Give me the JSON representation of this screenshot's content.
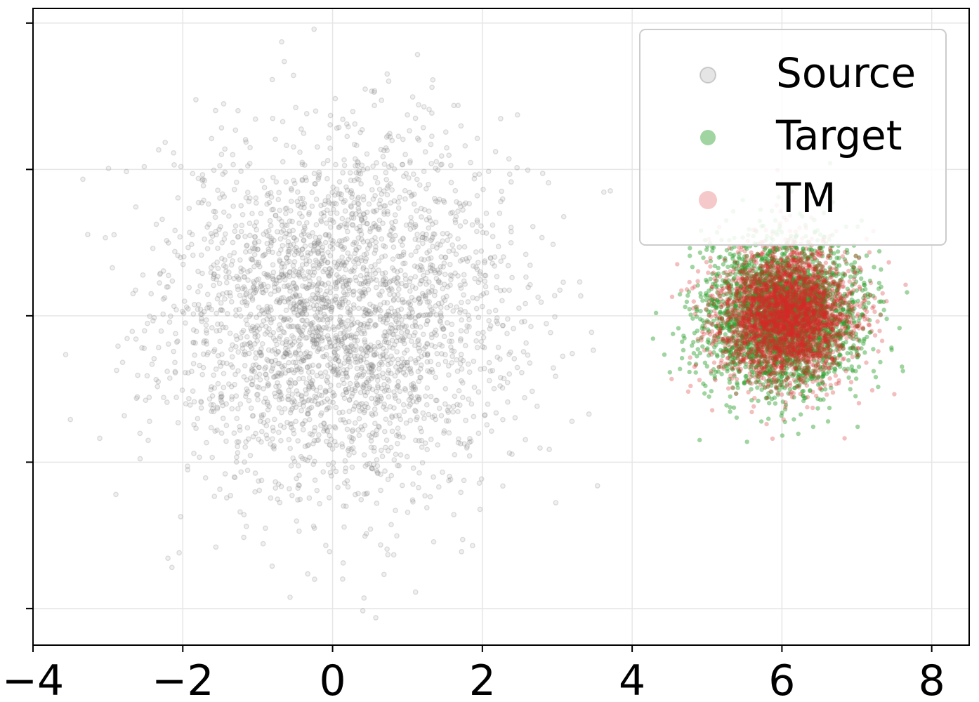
{
  "chart_data": {
    "type": "scatter",
    "title": "",
    "xlabel": "",
    "ylabel": "",
    "xlim": [
      -4.0,
      8.5
    ],
    "ylim": [
      -4.5,
      4.2
    ],
    "xticks": [
      -4,
      -2,
      0,
      2,
      4,
      6,
      8
    ],
    "x_tick_labels": [
      "−4",
      "−2",
      "0",
      "2",
      "4",
      "6",
      "8"
    ],
    "yticks": [
      -4,
      -2,
      0,
      2,
      4
    ],
    "y_tick_labels_shown": false,
    "grid": true,
    "legend_position": "top-right",
    "series": [
      {
        "name": "Source",
        "color": "#7f7f7f",
        "marker": "hollow-circle",
        "alpha": 0.25,
        "distribution": "gaussian",
        "mean": [
          0.1,
          0.0
        ],
        "std": [
          1.15,
          1.2
        ],
        "count": 3000
      },
      {
        "name": "Target",
        "color": "#2ca02c",
        "marker": "filled-circle",
        "alpha": 0.45,
        "distribution": "gaussian",
        "mean": [
          6.0,
          0.0
        ],
        "std": [
          0.5,
          0.5
        ],
        "count": 3000
      },
      {
        "name": "TM",
        "color": "#d62728",
        "marker": "filled-circle",
        "alpha": 0.3,
        "distribution": "gaussian",
        "mean": [
          6.05,
          0.0
        ],
        "std": [
          0.45,
          0.45
        ],
        "count": 3000
      }
    ]
  }
}
